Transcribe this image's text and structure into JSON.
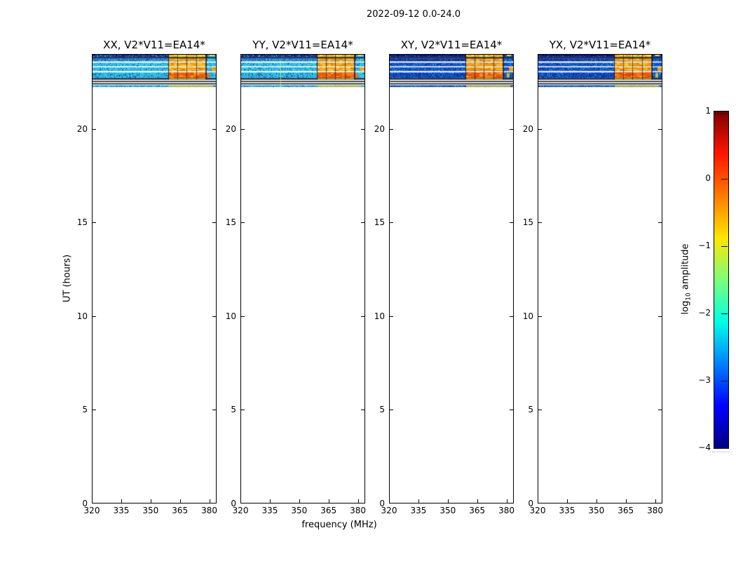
{
  "figure": {
    "title": "2022-09-12 0.0-24.0",
    "background": "#ffffff"
  },
  "axes": {
    "xlabel": "frequency (MHz)",
    "ylabel": "UT (hours)",
    "x_tick_labels": [
      "320",
      "335",
      "350",
      "365",
      "380"
    ],
    "x_tick_values": [
      320,
      335,
      350,
      365,
      380
    ],
    "y_tick_labels": [
      "0",
      "5",
      "10",
      "15",
      "20"
    ],
    "y_tick_values": [
      0,
      5,
      10,
      15,
      20
    ],
    "x_range": [
      320,
      383
    ],
    "y_range": [
      0,
      24
    ]
  },
  "panels": [
    {
      "id": "XX",
      "title": "XX, V2*V11=EA14*",
      "style": "cyan",
      "seed": 11
    },
    {
      "id": "YY",
      "title": "YY, V2*V11=EA14*",
      "style": "cyan",
      "seed": 22,
      "bright_line_mhz": 340
    },
    {
      "id": "XY",
      "title": "XY, V2*V11=EA14*",
      "style": "blue",
      "seed": 33
    },
    {
      "id": "YX",
      "title": "YX, V2*V11=EA14*",
      "style": "blue",
      "seed": 44
    }
  ],
  "colorbar": {
    "label": "log10 amplitude",
    "label_main": "log",
    "label_sub": "10",
    "label_rest": " amplitude",
    "tick_labels": [
      "1",
      "0",
      "−1",
      "−2",
      "−3",
      "−4"
    ],
    "tick_values": [
      1,
      0,
      -1,
      -2,
      -3,
      -4
    ],
    "range": [
      -4,
      1
    ],
    "colormap": "jet"
  },
  "spectrogram": {
    "freq_range_mhz": [
      320,
      383
    ],
    "rfi_freq_mhz": [
      359,
      378
    ],
    "rfi_edge_mhz": [
      378.6,
      382.5
    ],
    "rfi_channel_bounds_mhz": [
      363.3,
      368.1,
      372.9,
      377.7
    ],
    "rows": [
      {
        "name": "A",
        "y": 0,
        "h": 3.6,
        "kind": "noise",
        "pal": "dark",
        "rfi": "top",
        "ut": [
          23.87,
          24.0
        ]
      },
      {
        "name": "black-row",
        "y": 3.6,
        "h": 1.9,
        "kind": "solid",
        "color": "#04102e",
        "ut": [
          23.79,
          23.87
        ]
      },
      {
        "name": "B",
        "y": 5.5,
        "h": 4.0,
        "kind": "noise",
        "pal": "mid",
        "rfi": "normal",
        "ut": [
          23.64,
          23.79
        ]
      },
      {
        "name": "C",
        "y": 11.5,
        "h": 5.0,
        "kind": "noise",
        "pal": "bright",
        "rfi": "normal",
        "ut": [
          23.38,
          23.57
        ]
      },
      {
        "name": "D",
        "y": 18.0,
        "h": 5.3,
        "kind": "noise",
        "pal": "bright",
        "rfi": "normal",
        "rightHot": true,
        "ut": [
          23.13,
          23.33
        ]
      },
      {
        "name": "E",
        "y": 25.3,
        "h": 8.2,
        "kind": "noise",
        "pal": "deep",
        "rfi": "strong",
        "ut": [
          22.74,
          23.05
        ]
      },
      {
        "name": "dark-yellow-row",
        "y": 33.5,
        "h": 2.0,
        "kind": "solid",
        "color": "#04102e",
        "rfiSolid": "#c9b414",
        "ut": [
          22.67,
          22.75
        ]
      },
      {
        "name": "black-line-1",
        "y": 37.5,
        "h": 1.4,
        "kind": "solid",
        "color": "#000000",
        "ut": [
          22.54,
          22.6
        ]
      },
      {
        "name": "black-line-2",
        "y": 40.8,
        "h": 1.4,
        "kind": "solid",
        "color": "#000000",
        "ut": [
          22.42,
          22.47
        ]
      },
      {
        "name": "F",
        "y": 43.6,
        "h": 2.5,
        "kind": "noise",
        "pal": "thin",
        "rfiSolid": "#d2bc16",
        "rfiExtend": 172,
        "ut": [
          22.27,
          22.37
        ]
      }
    ],
    "palettes": {
      "cyan": {
        "dark": [
          "#081a7e",
          "#10379e",
          "#1b72c8",
          "#27b2dc",
          "#050d52"
        ],
        "mid": [
          "#1b6cc8",
          "#2795d4",
          "#31b9de",
          "#0e3296",
          "#44cfe6"
        ],
        "bright": [
          "#37c6e2",
          "#2bb3da",
          "#4cd7ea",
          "#1b7cc8",
          "#0e3296"
        ],
        "deep": [
          "#2fc0de",
          "#23aad6",
          "#41cfe6",
          "#165cba",
          "#092478"
        ],
        "thin": [
          "#2bb6dc",
          "#1b7cc8",
          "#3ecde6",
          "#0e3296",
          "#27b2dc"
        ]
      },
      "blue": {
        "dark": [
          "#050e66",
          "#091a8a",
          "#0d2da2",
          "#1246ba",
          "#1a78c8"
        ],
        "mid": [
          "#0a1f92",
          "#0d32ac",
          "#1250c2",
          "#1a70cc",
          "#2496d4"
        ],
        "bright": [
          "#0d35ac",
          "#1453c6",
          "#1b78d0",
          "#2399d8",
          "#2cb9de"
        ],
        "deep": [
          "#0c2fa4",
          "#1249be",
          "#196fcc",
          "#2196d6",
          "#071d7e"
        ],
        "thin": [
          "#0d35ac",
          "#1a70cc",
          "#2496d4",
          "#0a1f92",
          "#1250c2"
        ]
      },
      "rfi": {
        "top": [
          "#fcd21c",
          "#eca814",
          "#e4c424",
          "#f6920e",
          "#f2de2e"
        ],
        "normal": [
          "#f1980f",
          "#fcba1e",
          "#e87d0a",
          "#fdd026",
          "#f6a714"
        ],
        "strong": [
          "#ef5a06",
          "#fa7a0e",
          "#e64403",
          "#fda416",
          "#f68e08"
        ]
      }
    }
  },
  "chart_data": {
    "type": "heatmap",
    "title": "2022-09-12 0.0-24.0",
    "xlabel": "frequency (MHz)",
    "ylabel": "UT (hours)",
    "x_range": [
      320,
      383
    ],
    "y_range": [
      0,
      24
    ],
    "colorbar_label": "log10 amplitude",
    "colorbar_range": [
      -4,
      1
    ],
    "colormap": "jet",
    "panels": [
      {
        "name": "XX, V2*V11=EA14*",
        "background_log10_amp": -2.0
      },
      {
        "name": "YY, V2*V11=EA14*",
        "background_log10_amp": -2.0,
        "bright_vertical_line_mhz": 340
      },
      {
        "name": "XY, V2*V11=EA14*",
        "background_log10_amp": -2.9
      },
      {
        "name": "YX, V2*V11=EA14*",
        "background_log10_amp": -2.9
      }
    ],
    "data_extent": {
      "ut_hours_with_data": [
        22.27,
        24.0
      ],
      "ut_hours_blank": [
        0,
        22.27
      ]
    },
    "features": {
      "rfi_band_mhz": [
        359,
        378
      ],
      "rfi_log10_amp": [
        0.0,
        0.6
      ],
      "rfi_channel_boundaries_mhz": [
        363.3,
        368.1,
        372.9,
        377.7
      ],
      "edge_band_mhz": [
        378.6,
        382.5
      ],
      "time_rows": [
        {
          "ut": [
            23.87,
            24.0
          ],
          "level_log10": -3.2,
          "note": "dark speckled band with strong RFI 359-378 MHz"
        },
        {
          "ut": [
            23.79,
            23.87
          ],
          "level_log10": -4.0,
          "note": "near-black row"
        },
        {
          "ut": [
            23.64,
            23.79
          ],
          "level_log10": -2.6,
          "note": "blue band with RFI"
        },
        {
          "ut": [
            23.38,
            23.57
          ],
          "level_log10": -2.0,
          "note": "cyan band with RFI"
        },
        {
          "ut": [
            23.13,
            23.33
          ],
          "level_log10": -2.0,
          "note": "cyan band, hot right edge"
        },
        {
          "ut": [
            22.74,
            23.05
          ],
          "level_log10": -1.9,
          "note": "widest band, strongest red-orange RFI blobs"
        },
        {
          "ut": [
            22.67,
            22.75
          ],
          "level_log10": -3.8,
          "note": "dark row with yellow RFI stripe"
        },
        {
          "ut": [
            22.54,
            22.6
          ],
          "level_log10": -4.0,
          "note": "black line"
        },
        {
          "ut": [
            22.42,
            22.47
          ],
          "level_log10": -4.0,
          "note": "black line"
        },
        {
          "ut": [
            22.27,
            22.37
          ],
          "level_log10": -2.2,
          "note": "thin band with yellow RFI stripe"
        }
      ]
    }
  }
}
